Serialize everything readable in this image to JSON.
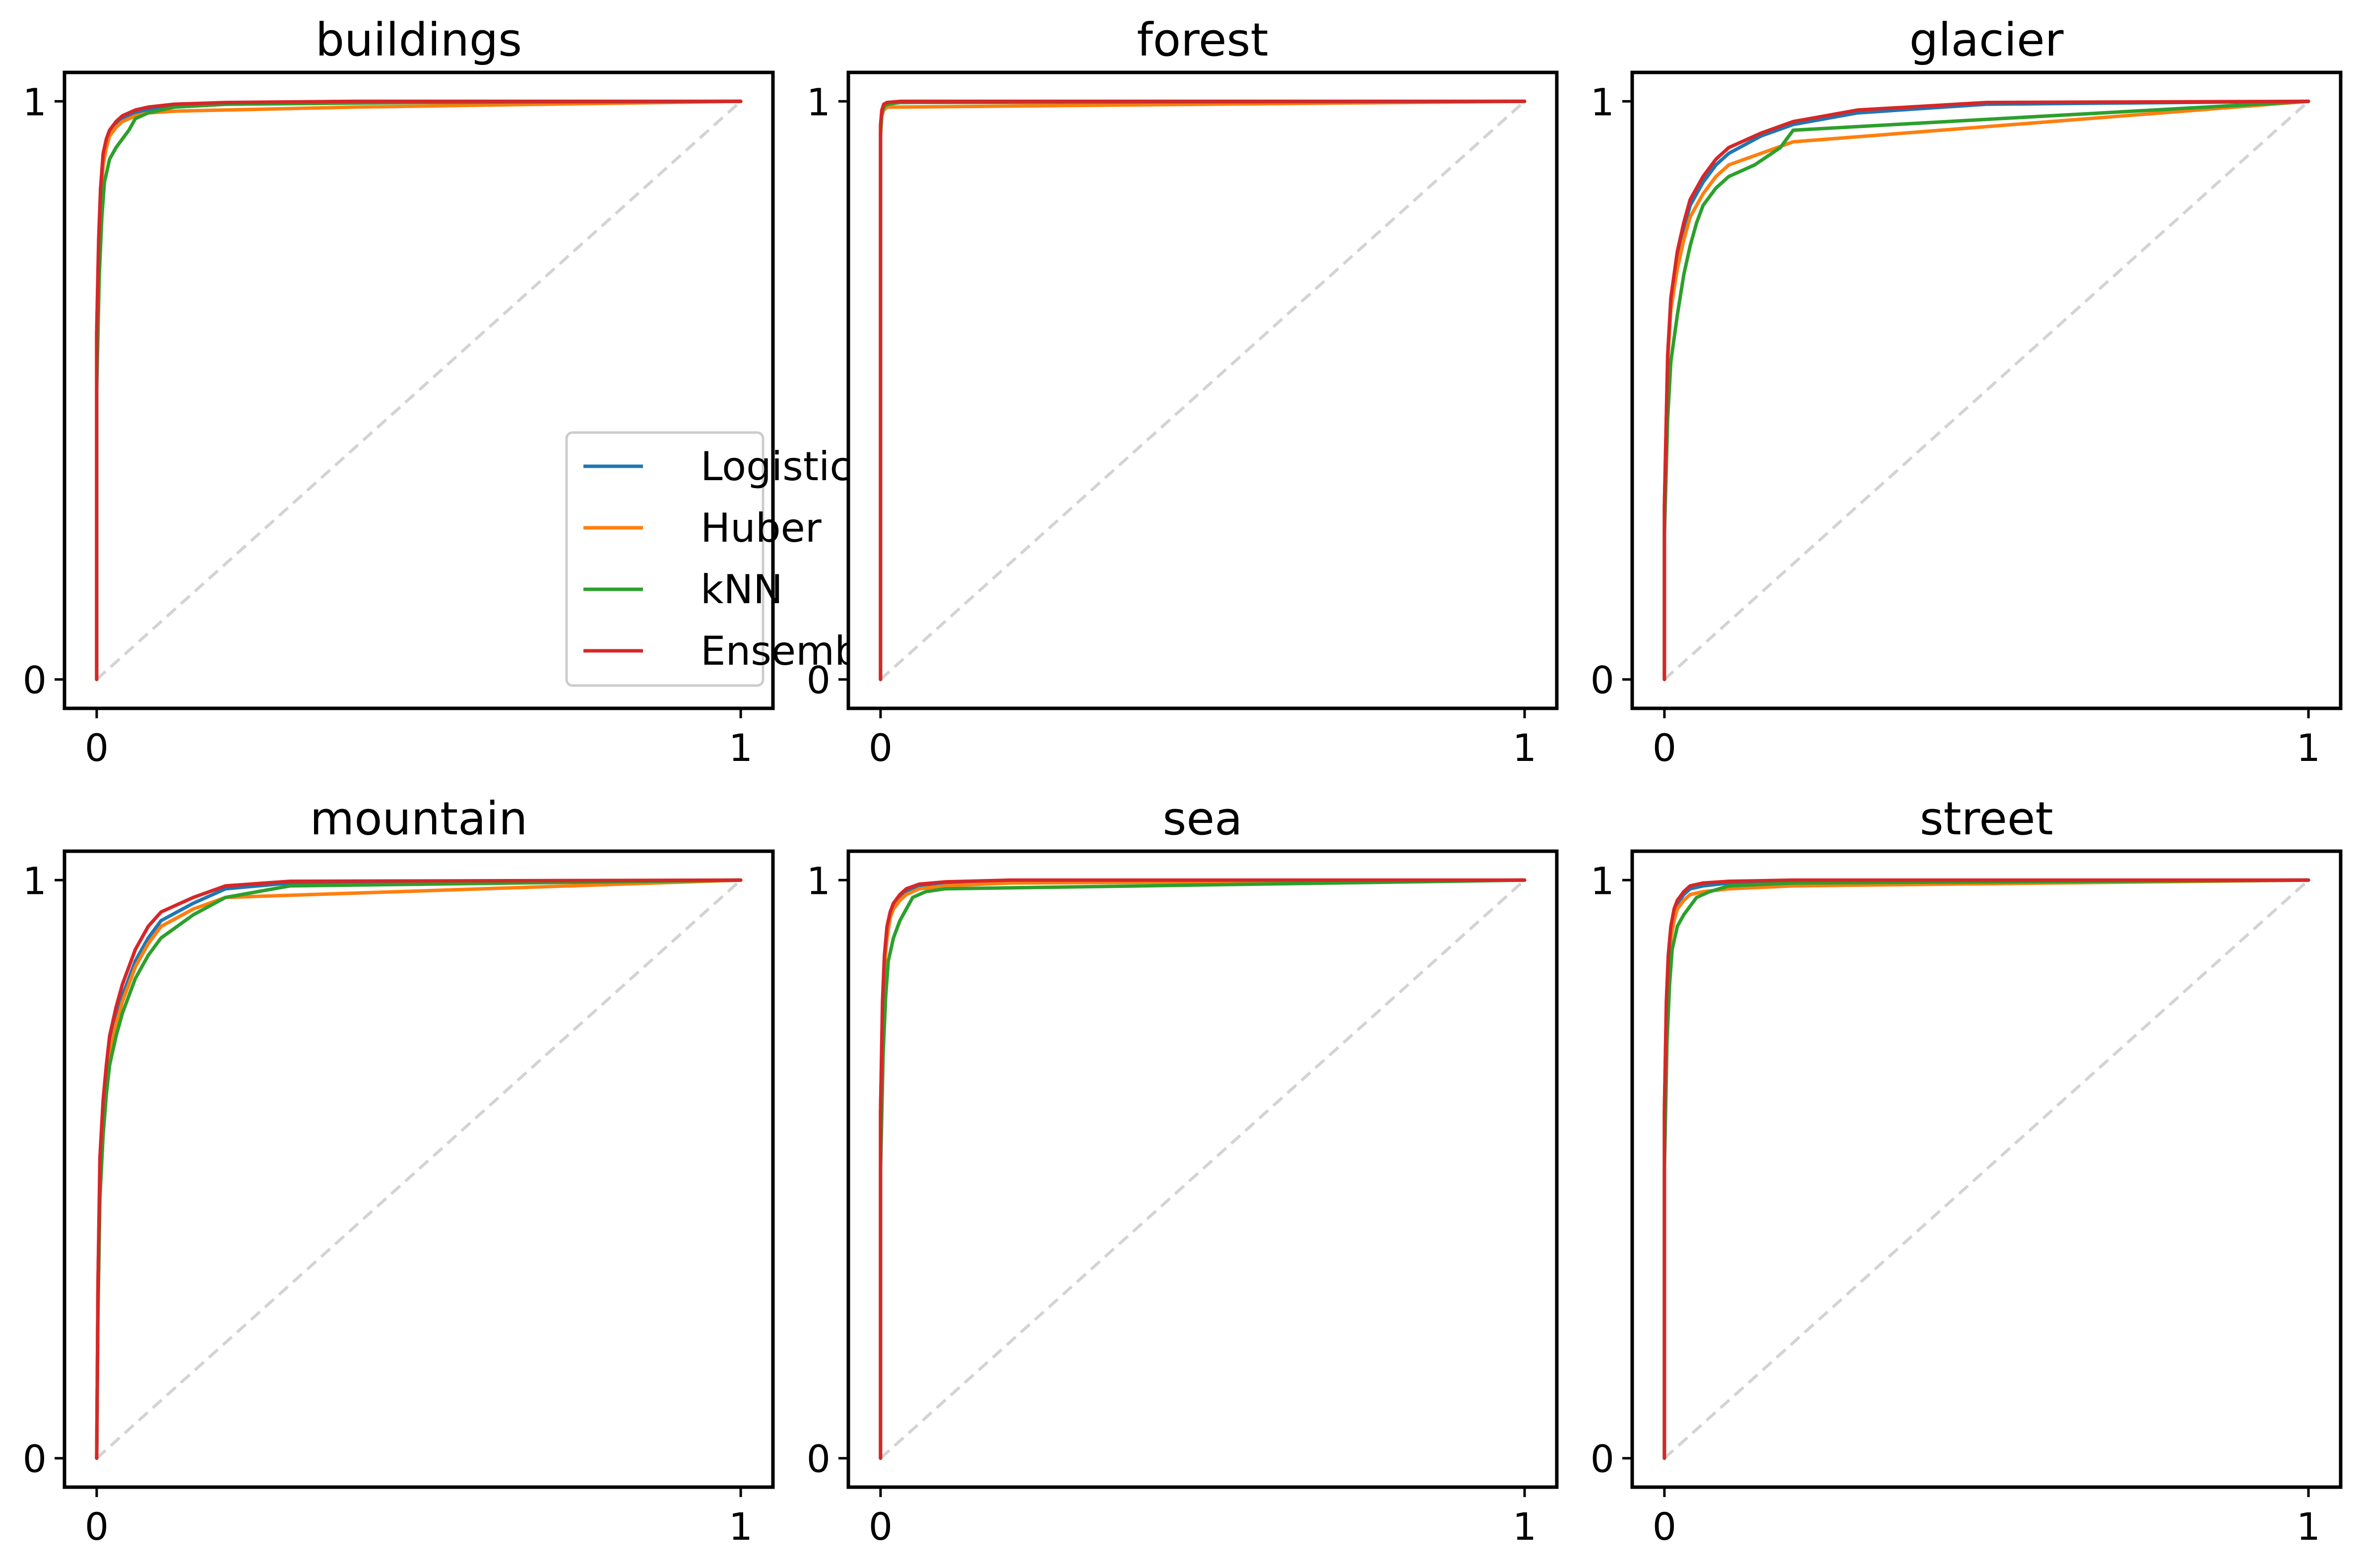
{
  "figure": {
    "layout": {
      "rows": 2,
      "cols": 3
    }
  },
  "colors": {
    "Logistic": "#1f77b4",
    "Huber": "#ff7f0e",
    "kNN": "#2ca02c",
    "Ensemble": "#d62728",
    "diagonal": "#d3d3d3",
    "frame": "#000000"
  },
  "legend": {
    "panel": 0,
    "location": "lower right",
    "entries": [
      "Logistic",
      "Huber",
      "kNN",
      "Ensemble"
    ]
  },
  "chart_data": [
    {
      "type": "line",
      "title": "buildings",
      "xlabel": "",
      "ylabel": "",
      "xlim": [
        -0.05,
        1.05
      ],
      "ylim": [
        -0.05,
        1.05
      ],
      "xticks": [
        0,
        1
      ],
      "yticks": [
        0,
        1
      ],
      "grid": false,
      "diagonal": true,
      "series": [
        {
          "name": "Logistic",
          "x": [
            0,
            0,
            0.003,
            0.006,
            0.01,
            0.015,
            0.02,
            0.03,
            0.04,
            0.06,
            0.08,
            0.12,
            0.2,
            0.4,
            1
          ],
          "y": [
            0,
            0.6,
            0.75,
            0.84,
            0.9,
            0.93,
            0.95,
            0.96,
            0.97,
            0.98,
            0.985,
            0.99,
            0.995,
            0.998,
            1
          ]
        },
        {
          "name": "Huber",
          "x": [
            0,
            0,
            0.003,
            0.006,
            0.01,
            0.015,
            0.02,
            0.03,
            0.04,
            0.06,
            0.08,
            0.12,
            0.2,
            0.4,
            1
          ],
          "y": [
            0,
            0.6,
            0.74,
            0.83,
            0.89,
            0.92,
            0.94,
            0.955,
            0.965,
            0.975,
            0.98,
            0.983,
            0.985,
            0.99,
            1
          ]
        },
        {
          "name": "kNN",
          "x": [
            0,
            0,
            0.004,
            0.008,
            0.012,
            0.02,
            0.03,
            0.04,
            0.05,
            0.06,
            0.08,
            0.12,
            0.2,
            0.5,
            1
          ],
          "y": [
            0,
            0.5,
            0.7,
            0.8,
            0.86,
            0.9,
            0.92,
            0.935,
            0.95,
            0.97,
            0.98,
            0.99,
            0.995,
            0.998,
            1
          ]
        },
        {
          "name": "Ensemble",
          "x": [
            0,
            0,
            0.003,
            0.006,
            0.01,
            0.015,
            0.02,
            0.03,
            0.04,
            0.06,
            0.08,
            0.12,
            0.2,
            0.4,
            1
          ],
          "y": [
            0,
            0.6,
            0.76,
            0.85,
            0.91,
            0.935,
            0.95,
            0.965,
            0.975,
            0.985,
            0.99,
            0.995,
            0.998,
            1,
            1
          ]
        }
      ]
    },
    {
      "type": "line",
      "title": "forest",
      "xlabel": "",
      "ylabel": "",
      "xlim": [
        -0.05,
        1.05
      ],
      "ylim": [
        -0.05,
        1.05
      ],
      "xticks": [
        0,
        1
      ],
      "yticks": [
        0,
        1
      ],
      "grid": false,
      "diagonal": true,
      "series": [
        {
          "name": "Logistic",
          "x": [
            0,
            0,
            0.002,
            0.005,
            0.01,
            0.03,
            1
          ],
          "y": [
            0,
            0.95,
            0.98,
            0.99,
            0.995,
            0.998,
            1
          ]
        },
        {
          "name": "Huber",
          "x": [
            0,
            0,
            0.002,
            0.005,
            0.01,
            0.03,
            1
          ],
          "y": [
            0,
            0.94,
            0.975,
            0.985,
            0.99,
            0.99,
            1
          ]
        },
        {
          "name": "kNN",
          "x": [
            0,
            0,
            0.002,
            0.005,
            0.01,
            0.03,
            1
          ],
          "y": [
            0,
            0.95,
            0.98,
            0.99,
            0.995,
            0.998,
            1
          ]
        },
        {
          "name": "Ensemble",
          "x": [
            0,
            0,
            0.002,
            0.005,
            0.01,
            0.03,
            1
          ],
          "y": [
            0,
            0.96,
            0.985,
            0.995,
            0.998,
            1,
            1
          ]
        }
      ]
    },
    {
      "type": "line",
      "title": "glacier",
      "xlabel": "",
      "ylabel": "",
      "xlim": [
        -0.05,
        1.05
      ],
      "ylim": [
        -0.05,
        1.05
      ],
      "xticks": [
        0,
        1
      ],
      "yticks": [
        0,
        1
      ],
      "grid": false,
      "diagonal": true,
      "series": [
        {
          "name": "Logistic",
          "x": [
            0,
            0,
            0.005,
            0.01,
            0.02,
            0.03,
            0.04,
            0.06,
            0.08,
            0.1,
            0.15,
            0.2,
            0.3,
            0.5,
            1
          ],
          "y": [
            0,
            0.3,
            0.55,
            0.65,
            0.73,
            0.78,
            0.82,
            0.86,
            0.89,
            0.91,
            0.94,
            0.96,
            0.98,
            0.995,
            1
          ]
        },
        {
          "name": "Huber",
          "x": [
            0,
            0,
            0.005,
            0.01,
            0.02,
            0.03,
            0.04,
            0.06,
            0.08,
            0.1,
            0.15,
            0.2,
            1
          ],
          "y": [
            0,
            0.3,
            0.55,
            0.64,
            0.71,
            0.76,
            0.8,
            0.84,
            0.87,
            0.89,
            0.91,
            0.93,
            1
          ]
        },
        {
          "name": "kNN",
          "x": [
            0,
            0,
            0.005,
            0.01,
            0.02,
            0.03,
            0.04,
            0.05,
            0.06,
            0.08,
            0.1,
            0.14,
            0.18,
            0.2,
            1
          ],
          "y": [
            0,
            0.25,
            0.45,
            0.55,
            0.63,
            0.7,
            0.75,
            0.79,
            0.82,
            0.85,
            0.87,
            0.89,
            0.92,
            0.95,
            1
          ]
        },
        {
          "name": "Ensemble",
          "x": [
            0,
            0,
            0.005,
            0.01,
            0.02,
            0.03,
            0.04,
            0.06,
            0.08,
            0.1,
            0.15,
            0.2,
            0.3,
            0.5,
            1
          ],
          "y": [
            0,
            0.3,
            0.56,
            0.66,
            0.74,
            0.79,
            0.83,
            0.87,
            0.9,
            0.92,
            0.945,
            0.965,
            0.985,
            0.998,
            1
          ]
        }
      ]
    },
    {
      "type": "line",
      "title": "mountain",
      "xlabel": "",
      "ylabel": "",
      "xlim": [
        -0.05,
        1.05
      ],
      "ylim": [
        -0.05,
        1.05
      ],
      "xticks": [
        0,
        1
      ],
      "yticks": [
        0,
        1
      ],
      "grid": false,
      "diagonal": true,
      "series": [
        {
          "name": "Logistic",
          "x": [
            0,
            0.002,
            0.005,
            0.01,
            0.015,
            0.02,
            0.03,
            0.04,
            0.06,
            0.08,
            0.1,
            0.15,
            0.2,
            0.3,
            1
          ],
          "y": [
            0,
            0.3,
            0.5,
            0.6,
            0.66,
            0.71,
            0.76,
            0.8,
            0.86,
            0.9,
            0.93,
            0.96,
            0.985,
            0.995,
            1
          ]
        },
        {
          "name": "Huber",
          "x": [
            0,
            0.002,
            0.005,
            0.01,
            0.015,
            0.02,
            0.03,
            0.04,
            0.06,
            0.08,
            0.1,
            0.15,
            0.2,
            1
          ],
          "y": [
            0,
            0.3,
            0.5,
            0.6,
            0.66,
            0.7,
            0.75,
            0.79,
            0.85,
            0.89,
            0.92,
            0.95,
            0.97,
            1
          ]
        },
        {
          "name": "kNN",
          "x": [
            0,
            0.002,
            0.005,
            0.01,
            0.015,
            0.02,
            0.03,
            0.04,
            0.06,
            0.08,
            0.1,
            0.15,
            0.2,
            0.3,
            1
          ],
          "y": [
            0,
            0.25,
            0.45,
            0.56,
            0.63,
            0.68,
            0.73,
            0.77,
            0.83,
            0.87,
            0.9,
            0.94,
            0.97,
            0.99,
            1
          ]
        },
        {
          "name": "Ensemble",
          "x": [
            0,
            0.002,
            0.005,
            0.01,
            0.015,
            0.02,
            0.03,
            0.04,
            0.06,
            0.08,
            0.1,
            0.15,
            0.2,
            0.3,
            1
          ],
          "y": [
            0,
            0.3,
            0.52,
            0.62,
            0.68,
            0.73,
            0.78,
            0.82,
            0.88,
            0.92,
            0.945,
            0.97,
            0.99,
            0.998,
            1
          ]
        }
      ]
    },
    {
      "type": "line",
      "title": "sea",
      "xlabel": "",
      "ylabel": "",
      "xlim": [
        -0.05,
        1.05
      ],
      "ylim": [
        -0.05,
        1.05
      ],
      "xticks": [
        0,
        1
      ],
      "yticks": [
        0,
        1
      ],
      "grid": false,
      "diagonal": true,
      "series": [
        {
          "name": "Logistic",
          "x": [
            0,
            0,
            0.003,
            0.006,
            0.01,
            0.015,
            0.02,
            0.03,
            0.04,
            0.06,
            0.1,
            0.2,
            1
          ],
          "y": [
            0,
            0.6,
            0.78,
            0.86,
            0.91,
            0.94,
            0.955,
            0.97,
            0.98,
            0.99,
            0.995,
            0.998,
            1
          ]
        },
        {
          "name": "Huber",
          "x": [
            0,
            0,
            0.003,
            0.006,
            0.01,
            0.015,
            0.02,
            0.03,
            0.04,
            0.06,
            0.1,
            0.2,
            1
          ],
          "y": [
            0,
            0.6,
            0.77,
            0.85,
            0.9,
            0.935,
            0.95,
            0.965,
            0.975,
            0.985,
            0.99,
            0.995,
            1
          ]
        },
        {
          "name": "kNN",
          "x": [
            0,
            0,
            0.004,
            0.008,
            0.012,
            0.02,
            0.03,
            0.04,
            0.05,
            0.07,
            0.1,
            1
          ],
          "y": [
            0,
            0.5,
            0.7,
            0.8,
            0.86,
            0.9,
            0.93,
            0.95,
            0.97,
            0.98,
            0.985,
            1
          ]
        },
        {
          "name": "Ensemble",
          "x": [
            0,
            0,
            0.003,
            0.006,
            0.01,
            0.015,
            0.02,
            0.03,
            0.04,
            0.06,
            0.1,
            0.2,
            1
          ],
          "y": [
            0,
            0.6,
            0.79,
            0.87,
            0.92,
            0.945,
            0.96,
            0.975,
            0.985,
            0.993,
            0.997,
            1,
            1
          ]
        }
      ]
    },
    {
      "type": "line",
      "title": "street",
      "xlabel": "",
      "ylabel": "",
      "xlim": [
        -0.05,
        1.05
      ],
      "ylim": [
        -0.05,
        1.05
      ],
      "xticks": [
        0,
        1
      ],
      "yticks": [
        0,
        1
      ],
      "grid": false,
      "diagonal": true,
      "series": [
        {
          "name": "Logistic",
          "x": [
            0,
            0,
            0.003,
            0.006,
            0.01,
            0.015,
            0.02,
            0.03,
            0.04,
            0.06,
            0.1,
            0.2,
            1
          ],
          "y": [
            0,
            0.6,
            0.78,
            0.86,
            0.91,
            0.94,
            0.96,
            0.975,
            0.985,
            0.99,
            0.995,
            0.998,
            1
          ]
        },
        {
          "name": "Huber",
          "x": [
            0,
            0,
            0.003,
            0.006,
            0.01,
            0.015,
            0.02,
            0.03,
            0.04,
            0.06,
            0.1,
            0.2,
            1
          ],
          "y": [
            0,
            0.6,
            0.77,
            0.85,
            0.9,
            0.93,
            0.95,
            0.965,
            0.975,
            0.98,
            0.985,
            0.99,
            1
          ]
        },
        {
          "name": "kNN",
          "x": [
            0,
            0,
            0.004,
            0.008,
            0.012,
            0.02,
            0.03,
            0.04,
            0.05,
            0.07,
            0.1,
            0.2,
            1
          ],
          "y": [
            0,
            0.5,
            0.72,
            0.82,
            0.88,
            0.92,
            0.94,
            0.955,
            0.97,
            0.98,
            0.99,
            0.995,
            1
          ]
        },
        {
          "name": "Ensemble",
          "x": [
            0,
            0,
            0.003,
            0.006,
            0.01,
            0.015,
            0.02,
            0.03,
            0.04,
            0.06,
            0.1,
            0.2,
            1
          ],
          "y": [
            0,
            0.6,
            0.79,
            0.87,
            0.92,
            0.95,
            0.965,
            0.98,
            0.99,
            0.995,
            0.998,
            1,
            1
          ]
        }
      ]
    }
  ]
}
